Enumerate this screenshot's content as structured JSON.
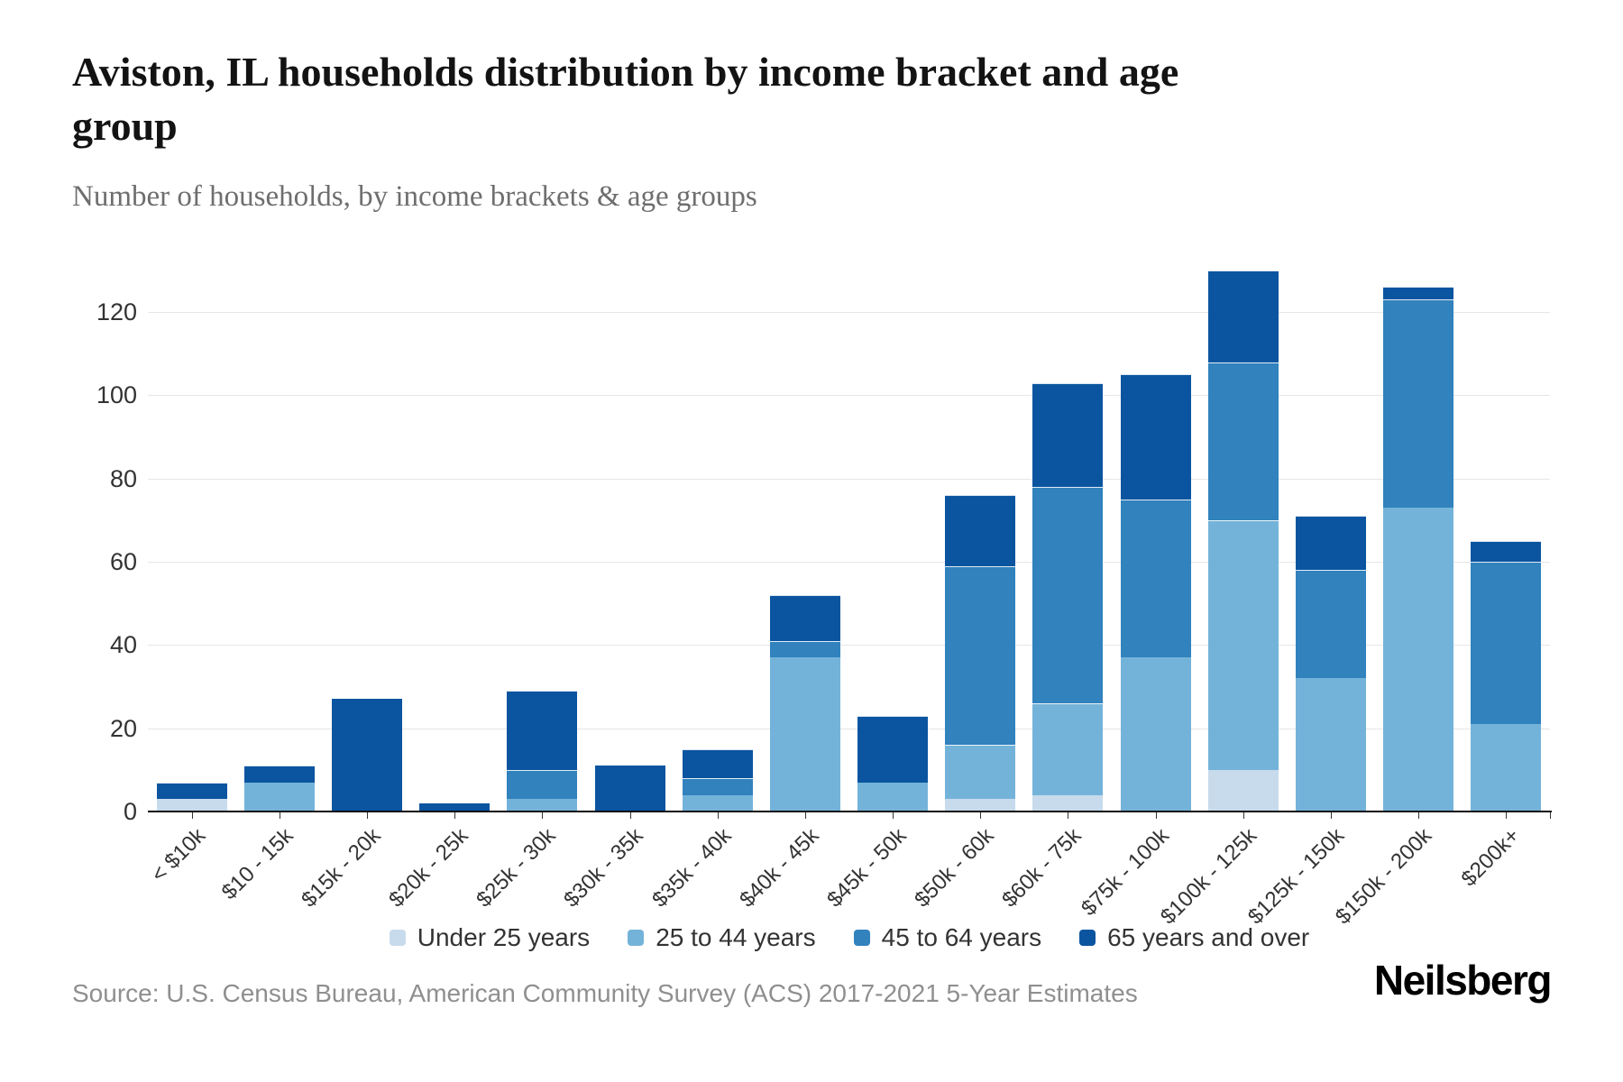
{
  "header": {
    "title": "Aviston, IL households distribution by income bracket and age group",
    "subtitle": "Number of households, by income brackets & age groups"
  },
  "chart_data": {
    "type": "bar",
    "stacked": true,
    "title": "Aviston, IL households distribution by income bracket and age group",
    "subtitle": "Number of households, by income brackets & age groups",
    "xlabel": "",
    "ylabel": "",
    "ylim": [
      0,
      130
    ],
    "yticks": [
      0,
      20,
      40,
      60,
      80,
      100,
      120
    ],
    "grid": true,
    "legend_position": "bottom",
    "categories": [
      "< $10k",
      "$10 - 15k",
      "$15k - 20k",
      "$20k - 25k",
      "$25k - 30k",
      "$30k - 35k",
      "$35k - 40k",
      "$40k - 45k",
      "$45k - 50k",
      "$50k - 60k",
      "$60k - 75k",
      "$75k - 100k",
      "$100k - 125k",
      "$125k - 150k",
      "$150k - 200k",
      "$200k+"
    ],
    "series": [
      {
        "name": "Under 25 years",
        "color": "#c7dbec",
        "values": [
          3,
          0,
          0,
          0,
          0,
          0,
          0,
          0,
          0,
          3,
          4,
          0,
          10,
          0,
          0,
          0
        ]
      },
      {
        "name": "25 to 44 years",
        "color": "#74b3d9",
        "values": [
          0,
          7,
          0,
          0,
          3,
          0,
          4,
          37,
          7,
          13,
          22,
          37,
          60,
          32,
          73,
          21
        ]
      },
      {
        "name": "45 to 64 years",
        "color": "#3182bd",
        "values": [
          0,
          0,
          0,
          0,
          7,
          0,
          4,
          4,
          0,
          43,
          52,
          38,
          38,
          26,
          50,
          39
        ]
      },
      {
        "name": "65 years and over",
        "color": "#0b55a0",
        "values": [
          4,
          4,
          27,
          2,
          19,
          11,
          7,
          11,
          16,
          17,
          25,
          30,
          22,
          13,
          3,
          5
        ]
      }
    ],
    "totals": [
      7,
      11,
      27,
      2,
      29,
      11,
      15,
      52,
      23,
      76,
      103,
      105,
      130,
      71,
      126,
      65
    ]
  },
  "footer": {
    "source": "Source: U.S. Census Bureau, American Community Survey (ACS) 2017-2021 5-Year Estimates",
    "brand": "Neilsberg"
  }
}
